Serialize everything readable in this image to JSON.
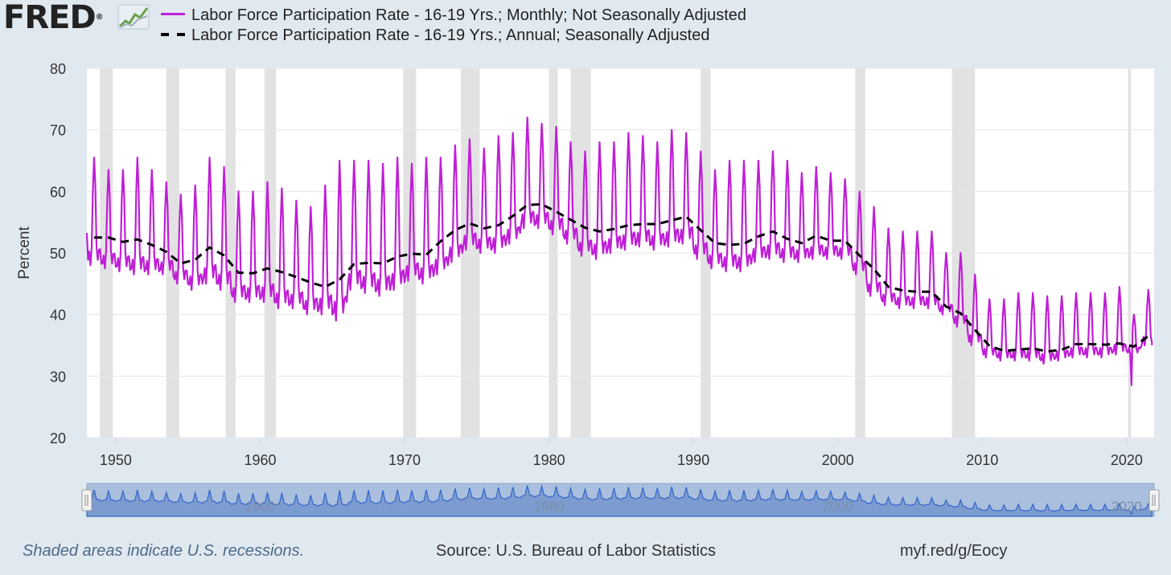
{
  "header": {
    "logo_text": "FRED",
    "logo_registered": "®"
  },
  "colors": {
    "monthly": "#bf1fd6",
    "annual": "#000000",
    "recession": "#e2e2e2",
    "plot_bg": "#ffffff",
    "page_bg": "#e1e9f0",
    "navigator": "#6d8fc9"
  },
  "chart_data": {
    "type": "line",
    "ylabel": "Percent",
    "ylim": [
      20,
      80
    ],
    "yticks": [
      "20",
      "30",
      "40",
      "50",
      "60",
      "70",
      "80"
    ],
    "xlim": [
      1948.0,
      2021.9
    ],
    "xticks": [
      "1950",
      "1960",
      "1970",
      "1980",
      "1990",
      "2000",
      "2010",
      "2020"
    ],
    "grid": "horizontal",
    "legend_position": "top-left",
    "series": [
      {
        "name": "Labor Force Participation Rate - 16-19 Yrs.; Monthly; Not Seasonally Adjusted",
        "style": "solid",
        "frequency": "monthly",
        "base_x": [
          1948,
          1949,
          1950,
          1951,
          1952,
          1953,
          1954,
          1955,
          1956,
          1957,
          1958,
          1959,
          1960,
          1961,
          1962,
          1963,
          1964,
          1965,
          1966,
          1967,
          1968,
          1969,
          1970,
          1971,
          1972,
          1973,
          1974,
          1975,
          1976,
          1977,
          1978,
          1979,
          1980,
          1981,
          1982,
          1983,
          1984,
          1985,
          1986,
          1987,
          1988,
          1989,
          1990,
          1991,
          1992,
          1993,
          1994,
          1995,
          1996,
          1997,
          1998,
          1999,
          2000,
          2001,
          2002,
          2003,
          2004,
          2005,
          2006,
          2007,
          2008,
          2009,
          2010,
          2011,
          2012,
          2013,
          2014,
          2015,
          2016,
          2017,
          2018,
          2019,
          2020,
          2021
        ],
        "base_y": [
          48.0,
          47.5,
          47.0,
          46.5,
          46.5,
          46.5,
          45.0,
          44.0,
          45.0,
          44.0,
          42.0,
          42.0,
          42.0,
          41.0,
          41.0,
          40.0,
          40.0,
          39.0,
          44.0,
          43.5,
          43.0,
          44.0,
          45.5,
          45.0,
          46.5,
          48.5,
          50.5,
          50.0,
          50.0,
          51.5,
          54.0,
          54.0,
          53.0,
          51.5,
          49.5,
          49.0,
          50.0,
          50.5,
          51.0,
          50.5,
          51.0,
          51.5,
          49.0,
          47.5,
          47.0,
          47.0,
          48.5,
          49.0,
          48.5,
          48.5,
          49.0,
          49.0,
          49.0,
          46.5,
          43.0,
          41.5,
          41.0,
          41.0,
          41.0,
          40.0,
          38.0,
          35.0,
          33.0,
          32.5,
          32.5,
          32.5,
          32.0,
          32.5,
          33.0,
          33.0,
          33.0,
          33.5,
          33.5,
          35.0
        ],
        "peak_y": [
          65.5,
          63.5,
          63.5,
          65.5,
          63.5,
          61.5,
          59.5,
          61.0,
          65.5,
          64.0,
          60.0,
          60.0,
          61.5,
          60.5,
          58.5,
          57.5,
          61.0,
          65.0,
          65.0,
          65.0,
          64.5,
          65.5,
          64.5,
          65.5,
          65.5,
          67.5,
          68.5,
          67.0,
          69.0,
          69.5,
          72.0,
          71.0,
          70.5,
          68.0,
          66.5,
          68.0,
          68.0,
          69.5,
          69.0,
          68.0,
          70.0,
          69.5,
          66.5,
          63.5,
          65.0,
          65.0,
          65.0,
          66.5,
          65.0,
          63.0,
          64.0,
          63.0,
          62.0,
          60.0,
          57.5,
          54.0,
          53.5,
          53.5,
          53.5,
          50.0,
          50.0,
          46.5,
          42.5,
          42.5,
          43.5,
          43.5,
          43.0,
          43.0,
          43.5,
          43.5,
          43.5,
          44.5,
          40.0,
          44.0
        ],
        "last_point": {
          "x": 2021.75,
          "y": 35.0
        },
        "covid_dip": {
          "x": 2020.3,
          "y": 28.5
        }
      },
      {
        "name": "Labor Force Participation Rate - 16-19 Yrs.; Annual; Seasonally Adjusted",
        "style": "dashed",
        "frequency": "annual",
        "x": [
          1948,
          1949,
          1950,
          1951,
          1952,
          1953,
          1954,
          1955,
          1956,
          1957,
          1958,
          1959,
          1960,
          1961,
          1962,
          1963,
          1964,
          1965,
          1966,
          1967,
          1968,
          1969,
          1970,
          1971,
          1972,
          1973,
          1974,
          1975,
          1976,
          1977,
          1978,
          1979,
          1980,
          1981,
          1982,
          1983,
          1984,
          1985,
          1986,
          1987,
          1988,
          1989,
          1990,
          1991,
          1992,
          1993,
          1994,
          1995,
          1996,
          1997,
          1998,
          1999,
          2000,
          2001,
          2002,
          2003,
          2004,
          2005,
          2006,
          2007,
          2008,
          2009,
          2010,
          2011,
          2012,
          2013,
          2014,
          2015,
          2016,
          2017,
          2018,
          2019,
          2020,
          2021
        ],
        "y": [
          52.5,
          52.5,
          51.8,
          52.2,
          51.3,
          50.2,
          48.3,
          48.9,
          50.9,
          49.6,
          46.8,
          46.7,
          47.5,
          46.9,
          46.1,
          45.2,
          44.5,
          45.7,
          48.2,
          48.4,
          48.3,
          49.4,
          49.9,
          49.7,
          51.9,
          53.7,
          54.8,
          54.0,
          54.5,
          56.0,
          57.8,
          57.9,
          56.7,
          55.4,
          54.1,
          53.5,
          53.9,
          54.5,
          54.7,
          54.7,
          55.3,
          55.9,
          53.7,
          51.6,
          51.3,
          51.5,
          52.7,
          53.5,
          52.3,
          51.6,
          52.8,
          52.0,
          52.0,
          49.6,
          47.4,
          44.5,
          43.9,
          43.7,
          43.7,
          41.3,
          40.2,
          37.5,
          34.9,
          34.1,
          34.3,
          34.5,
          34.0,
          34.3,
          35.2,
          35.2,
          35.1,
          35.3,
          34.8,
          36.5
        ]
      }
    ],
    "recessions": [
      [
        1948.9,
        1949.8
      ],
      [
        1953.5,
        1954.4
      ],
      [
        1957.6,
        1958.3
      ],
      [
        1960.3,
        1961.1
      ],
      [
        1969.9,
        1970.8
      ],
      [
        1973.9,
        1975.2
      ],
      [
        1980.0,
        1980.6
      ],
      [
        1981.5,
        1982.9
      ],
      [
        1990.5,
        1991.2
      ],
      [
        2001.2,
        2001.9
      ],
      [
        2007.9,
        2009.5
      ],
      [
        2020.1,
        2020.3
      ]
    ]
  },
  "navigator": {
    "tick_labels": [
      "1960",
      "1980",
      "2000",
      "2020"
    ]
  },
  "footer": {
    "note": "Shaded areas indicate U.S. recessions.",
    "source": "Source: U.S. Bureau of Labor Statistics",
    "link": "myf.red/g/Eocy"
  }
}
